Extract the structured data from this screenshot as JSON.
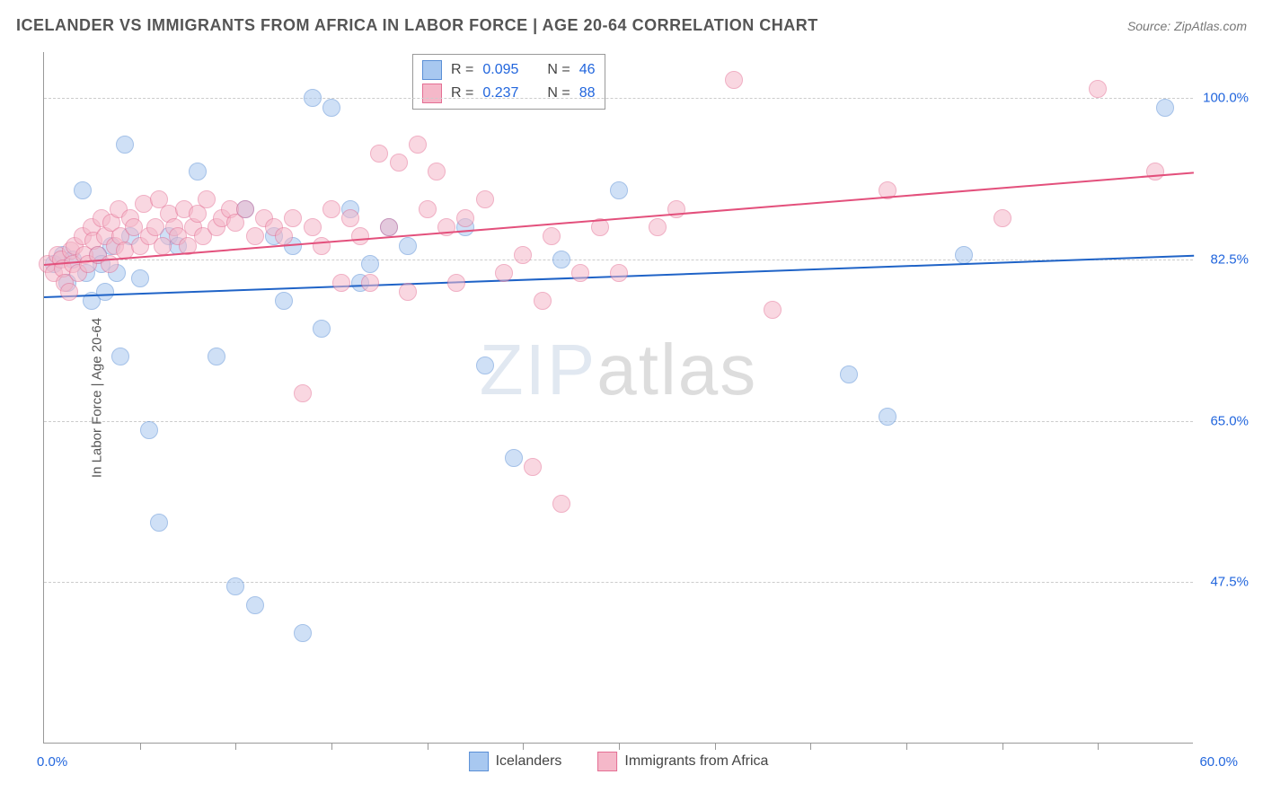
{
  "title": "ICELANDER VS IMMIGRANTS FROM AFRICA IN LABOR FORCE | AGE 20-64 CORRELATION CHART",
  "source_label": "Source: ZipAtlas.com",
  "y_axis_label": "In Labor Force | Age 20-64",
  "watermark": {
    "part1": "ZIP",
    "part2": "atlas"
  },
  "chart": {
    "type": "scatter",
    "xlim": [
      0,
      60
    ],
    "ylim": [
      30,
      105
    ],
    "x_label_min": "0.0%",
    "x_label_max": "60.0%",
    "x_label_color": "#2266dd",
    "x_ticks": [
      5,
      10,
      15,
      20,
      25,
      30,
      35,
      40,
      45,
      50,
      55
    ],
    "y_ticks": [
      {
        "value": 47.5,
        "label": "47.5%",
        "color": "#2266dd"
      },
      {
        "value": 65.0,
        "label": "65.0%",
        "color": "#2266dd"
      },
      {
        "value": 82.5,
        "label": "82.5%",
        "color": "#2266dd"
      },
      {
        "value": 100.0,
        "label": "100.0%",
        "color": "#2266dd"
      }
    ],
    "grid_color": "#cccccc",
    "background_color": "#ffffff",
    "point_radius": 10,
    "point_opacity": 0.55,
    "series": [
      {
        "name": "Icelanders",
        "color_fill": "#a8c8f0",
        "color_stroke": "#5a8fd6",
        "R": "0.095",
        "N": "46",
        "trend": {
          "x1": 0,
          "y1": 78.5,
          "x2": 60,
          "y2": 83.0,
          "color": "#1f63c7",
          "width": 2
        },
        "points": [
          [
            0.5,
            82
          ],
          [
            1,
            83
          ],
          [
            1.2,
            80
          ],
          [
            1.5,
            82.5
          ],
          [
            2,
            90
          ],
          [
            2.2,
            81
          ],
          [
            2.5,
            78
          ],
          [
            2.8,
            83
          ],
          [
            3,
            82
          ],
          [
            3.2,
            79
          ],
          [
            3.5,
            84
          ],
          [
            3.8,
            81
          ],
          [
            4,
            72
          ],
          [
            4.2,
            95
          ],
          [
            4.5,
            85
          ],
          [
            5,
            80.5
          ],
          [
            5.5,
            64
          ],
          [
            6,
            54
          ],
          [
            6.5,
            85
          ],
          [
            7,
            84
          ],
          [
            8,
            92
          ],
          [
            9,
            72
          ],
          [
            10,
            47
          ],
          [
            10.5,
            88
          ],
          [
            11,
            45
          ],
          [
            12,
            85
          ],
          [
            12.5,
            78
          ],
          [
            13,
            84
          ],
          [
            13.5,
            42
          ],
          [
            14,
            100
          ],
          [
            14.5,
            75
          ],
          [
            15,
            99
          ],
          [
            16,
            88
          ],
          [
            16.5,
            80
          ],
          [
            17,
            82
          ],
          [
            18,
            86
          ],
          [
            19,
            84
          ],
          [
            22,
            86
          ],
          [
            23,
            71
          ],
          [
            24.5,
            61
          ],
          [
            27,
            82.5
          ],
          [
            30,
            90
          ],
          [
            42,
            70
          ],
          [
            44,
            65.5
          ],
          [
            48,
            83
          ],
          [
            58.5,
            99
          ]
        ]
      },
      {
        "name": "Immigrants from Africa",
        "color_fill": "#f5b8c9",
        "color_stroke": "#e46f94",
        "R": "0.237",
        "N": "88",
        "trend": {
          "x1": 0,
          "y1": 82.0,
          "x2": 60,
          "y2": 92.0,
          "color": "#e3507c",
          "width": 2
        },
        "points": [
          [
            0.2,
            82
          ],
          [
            0.5,
            81
          ],
          [
            0.7,
            83
          ],
          [
            0.9,
            82.5
          ],
          [
            1,
            81.5
          ],
          [
            1.1,
            80
          ],
          [
            1.3,
            79
          ],
          [
            1.4,
            83.5
          ],
          [
            1.5,
            82
          ],
          [
            1.6,
            84
          ],
          [
            1.8,
            81
          ],
          [
            2,
            85
          ],
          [
            2.1,
            83
          ],
          [
            2.3,
            82
          ],
          [
            2.5,
            86
          ],
          [
            2.6,
            84.5
          ],
          [
            2.8,
            83
          ],
          [
            3,
            87
          ],
          [
            3.2,
            85
          ],
          [
            3.4,
            82
          ],
          [
            3.5,
            86.5
          ],
          [
            3.7,
            84
          ],
          [
            3.9,
            88
          ],
          [
            4,
            85
          ],
          [
            4.2,
            83.5
          ],
          [
            4.5,
            87
          ],
          [
            4.7,
            86
          ],
          [
            5,
            84
          ],
          [
            5.2,
            88.5
          ],
          [
            5.5,
            85
          ],
          [
            5.8,
            86
          ],
          [
            6,
            89
          ],
          [
            6.2,
            84
          ],
          [
            6.5,
            87.5
          ],
          [
            6.8,
            86
          ],
          [
            7,
            85
          ],
          [
            7.3,
            88
          ],
          [
            7.5,
            84
          ],
          [
            7.8,
            86
          ],
          [
            8,
            87.5
          ],
          [
            8.3,
            85
          ],
          [
            8.5,
            89
          ],
          [
            9,
            86
          ],
          [
            9.3,
            87
          ],
          [
            9.7,
            88
          ],
          [
            10,
            86.5
          ],
          [
            10.5,
            88
          ],
          [
            11,
            85
          ],
          [
            11.5,
            87
          ],
          [
            12,
            86
          ],
          [
            12.5,
            85
          ],
          [
            13,
            87
          ],
          [
            13.5,
            68
          ],
          [
            14,
            86
          ],
          [
            14.5,
            84
          ],
          [
            15,
            88
          ],
          [
            15.5,
            80
          ],
          [
            16,
            87
          ],
          [
            16.5,
            85
          ],
          [
            17,
            80
          ],
          [
            17.5,
            94
          ],
          [
            18,
            86
          ],
          [
            18.5,
            93
          ],
          [
            19,
            79
          ],
          [
            19.5,
            95
          ],
          [
            20,
            88
          ],
          [
            20.5,
            92
          ],
          [
            21,
            86
          ],
          [
            21.5,
            80
          ],
          [
            22,
            87
          ],
          [
            23,
            89
          ],
          [
            24,
            81
          ],
          [
            25,
            83
          ],
          [
            25.5,
            60
          ],
          [
            26,
            78
          ],
          [
            26.5,
            85
          ],
          [
            27,
            56
          ],
          [
            28,
            81
          ],
          [
            29,
            86
          ],
          [
            30,
            81
          ],
          [
            32,
            86
          ],
          [
            33,
            88
          ],
          [
            36,
            102
          ],
          [
            38,
            77
          ],
          [
            44,
            90
          ],
          [
            50,
            87
          ],
          [
            55,
            101
          ],
          [
            58,
            92
          ]
        ]
      }
    ]
  },
  "stats_labels": {
    "R": "R =",
    "N": "N ="
  },
  "legend_labels": [
    "Icelanders",
    "Immigrants from Africa"
  ]
}
